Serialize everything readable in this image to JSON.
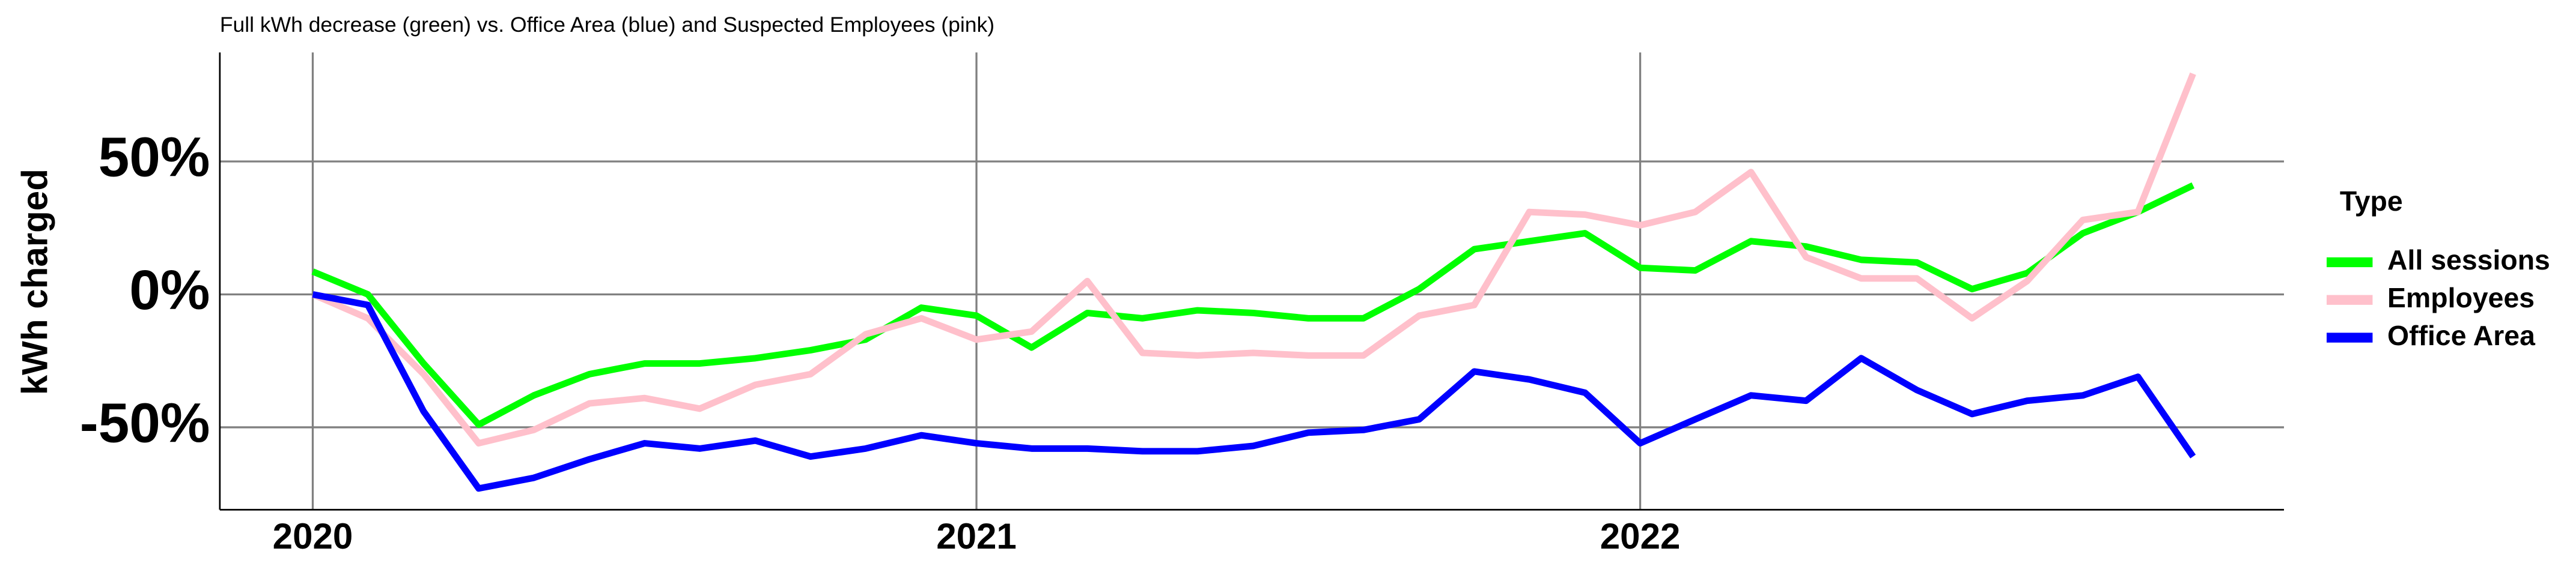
{
  "chart_data": {
    "type": "line",
    "title": "Full kWh decrease (green) vs. Office Area (blue) and Suspected Employees (pink)",
    "y_label": "kWh charged",
    "legend_title": "Type",
    "legend": "right",
    "grid": true,
    "x": [
      2020,
      2020.083,
      2020.167,
      2020.25,
      2020.333,
      2020.417,
      2020.5,
      2020.583,
      2020.667,
      2020.75,
      2020.833,
      2020.917,
      2021,
      2021.083,
      2021.167,
      2021.25,
      2021.333,
      2021.417,
      2021.5,
      2021.583,
      2021.667,
      2021.75,
      2021.833,
      2021.917,
      2022,
      2022.083,
      2022.167,
      2022.25,
      2022.333,
      2022.417,
      2022.5,
      2022.583,
      2022.667,
      2022.75,
      2022.833
    ],
    "xlim": [
      2019.86,
      2022.97
    ],
    "xticks": [
      2020,
      2021,
      2022
    ],
    "ylim": [
      -81,
      91
    ],
    "yticks": [
      {
        "value": -50,
        "label": "-50%"
      },
      {
        "value": 0,
        "label": "0%"
      },
      {
        "value": 50,
        "label": "50%"
      }
    ],
    "series": [
      {
        "name": "All sessions",
        "color": "#00ff00",
        "values": [
          8.6,
          0,
          -26,
          -49,
          -38,
          -30,
          -26,
          -26,
          -24,
          -21,
          -17,
          -5,
          -8,
          -20,
          -7,
          -9,
          -6,
          -7,
          -9,
          -9,
          2,
          17,
          20,
          23,
          10,
          9,
          20,
          18,
          13,
          12,
          2,
          8,
          23,
          31,
          41
        ]
      },
      {
        "name": "Employees",
        "color": "#ffc0cb",
        "values": [
          0,
          -9,
          -30,
          -56,
          -51,
          -41,
          -39,
          -43,
          -34,
          -30,
          -15,
          -9,
          -17,
          -14,
          5,
          -22,
          -23,
          -22,
          -23,
          -23,
          -8,
          -4,
          31,
          30,
          26,
          31,
          46,
          14,
          6,
          6,
          -9,
          5,
          28,
          31,
          83
        ]
      },
      {
        "name": "Office Area",
        "color": "#0000ff",
        "values": [
          0,
          -4,
          -44,
          -73,
          -69,
          -62,
          -56,
          -58,
          -55,
          -61,
          -58,
          -53,
          -56,
          -58,
          -58,
          -59,
          -59,
          -57,
          -52,
          -51,
          -47,
          -29,
          -32,
          -37,
          -56,
          -47,
          -38,
          -40,
          -24,
          -36,
          -45,
          -40,
          -38,
          -31,
          -61
        ]
      }
    ]
  }
}
